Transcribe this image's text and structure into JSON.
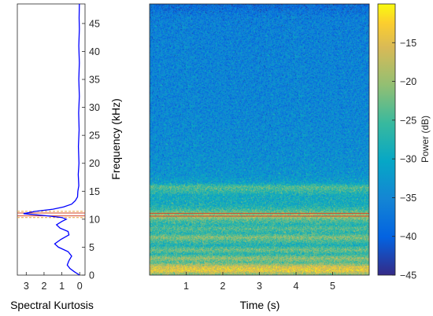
{
  "chart_data": [
    {
      "type": "line",
      "xlabel": "Spectral Kurtosis",
      "x_ticks": [
        3,
        2,
        1,
        0
      ],
      "xlim": [
        3.5,
        -0.3
      ],
      "x_reversed": true,
      "ylim": [
        0,
        48.5
      ],
      "y_ticks": [
        0,
        5,
        10,
        15,
        20,
        25,
        30,
        35,
        40,
        45
      ],
      "series": [
        {
          "color": "#0000ff",
          "points": [
            [
              0.0,
              0
            ],
            [
              0.3,
              0.6
            ],
            [
              0.55,
              1.2
            ],
            [
              0.7,
              1.8
            ],
            [
              0.6,
              2.6
            ],
            [
              0.45,
              3.4
            ],
            [
              0.65,
              4.2
            ],
            [
              1.2,
              5.0
            ],
            [
              1.4,
              5.6
            ],
            [
              1.05,
              6.4
            ],
            [
              0.6,
              7.2
            ],
            [
              0.65,
              7.8
            ],
            [
              1.1,
              8.4
            ],
            [
              1.3,
              9.0
            ],
            [
              1.0,
              9.6
            ],
            [
              0.75,
              10.0
            ],
            [
              1.0,
              10.3
            ],
            [
              1.8,
              10.6
            ],
            [
              3.15,
              11.0
            ],
            [
              2.5,
              11.4
            ],
            [
              1.5,
              11.8
            ],
            [
              0.9,
              12.2
            ],
            [
              0.45,
              12.7
            ],
            [
              0.25,
              13.3
            ],
            [
              0.12,
              14.0
            ],
            [
              0.1,
              15.0
            ],
            [
              0.05,
              16.0
            ],
            [
              0.08,
              18.0
            ],
            [
              0.04,
              20.0
            ],
            [
              0.07,
              23.0
            ],
            [
              0.03,
              26.0
            ],
            [
              0.06,
              29.0
            ],
            [
              0.02,
              32.0
            ],
            [
              0.05,
              35.0
            ],
            [
              0.02,
              38.0
            ],
            [
              0.05,
              41.0
            ],
            [
              0.02,
              44.0
            ],
            [
              0.03,
              46.0
            ],
            [
              0.02,
              48.5
            ]
          ]
        }
      ],
      "reference_lines": [
        {
          "y": 10.3,
          "color": "#e8a23a",
          "style": "dashed"
        },
        {
          "y": 10.6,
          "color": "#d4472a",
          "style": "solid"
        },
        {
          "y": 11.1,
          "color": "#d4472a",
          "style": "solid"
        },
        {
          "y": 11.4,
          "color": "#e8a23a",
          "style": "dashed"
        }
      ]
    },
    {
      "type": "heatmap",
      "xlabel": "Time (s)",
      "ylabel": "Frequency (kHz)",
      "xlim": [
        0,
        6
      ],
      "ylim": [
        0,
        48.5
      ],
      "x_ticks": [
        1,
        2,
        3,
        4,
        5
      ],
      "y_ticks": [
        0,
        5,
        10,
        15,
        20,
        25,
        30,
        35,
        40,
        45
      ],
      "colormap": "parula",
      "colorbar": {
        "label": "Power (dB)",
        "range": [
          -45,
          -10
        ],
        "ticks": [
          -45,
          -40,
          -35,
          -30,
          -25,
          -20,
          -15
        ]
      },
      "frequency_profile_db": [
        [
          0.0,
          -22
        ],
        [
          0.8,
          -14
        ],
        [
          1.5,
          -16
        ],
        [
          2.3,
          -24
        ],
        [
          3.0,
          -20
        ],
        [
          3.8,
          -27
        ],
        [
          4.5,
          -22
        ],
        [
          5.3,
          -28
        ],
        [
          6.0,
          -25
        ],
        [
          6.8,
          -21
        ],
        [
          7.5,
          -27
        ],
        [
          8.3,
          -24
        ],
        [
          9.0,
          -27
        ],
        [
          9.8,
          -24
        ],
        [
          10.5,
          -19
        ],
        [
          11.3,
          -23
        ],
        [
          12.0,
          -27
        ],
        [
          12.8,
          -29
        ],
        [
          13.5,
          -29
        ],
        [
          14.3,
          -29
        ],
        [
          15.0,
          -26
        ],
        [
          15.8,
          -24
        ],
        [
          16.5,
          -31
        ],
        [
          18.0,
          -33
        ],
        [
          22.0,
          -34
        ],
        [
          30.0,
          -35
        ],
        [
          40.0,
          -35.5
        ],
        [
          46.0,
          -36
        ],
        [
          48.5,
          -39
        ]
      ],
      "marker_lines": [
        {
          "y": 10.55,
          "color": "#d4472a"
        },
        {
          "y": 11.05,
          "color": "#d4472a"
        }
      ]
    }
  ]
}
